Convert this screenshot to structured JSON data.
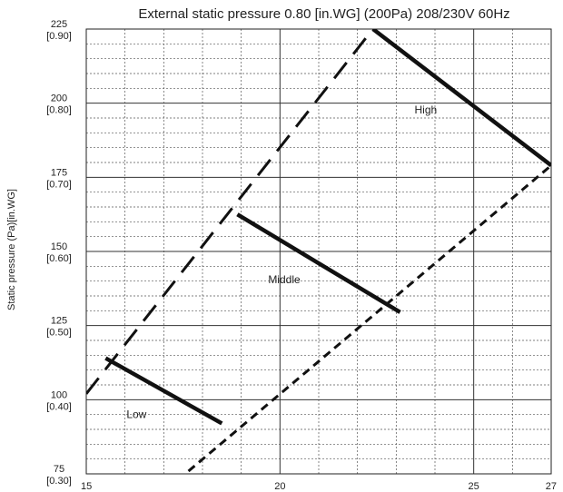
{
  "chart_data": {
    "type": "line",
    "title": "External static pressure 0.80 [in.WG] (200Pa)   208/230V 60Hz",
    "xlabel": "",
    "ylabel": "Static pressure (Pa)[in.WG]",
    "xlim": [
      15,
      27
    ],
    "ylim": [
      75,
      225
    ],
    "x_ticks": [
      {
        "value": 15,
        "label": "15"
      },
      {
        "value": 20,
        "label": "20"
      },
      {
        "value": 25,
        "label": "25"
      },
      {
        "value": 27,
        "label": "27"
      }
    ],
    "y_ticks": [
      {
        "value": 75,
        "label": "75",
        "sublabel": "[0.30]"
      },
      {
        "value": 100,
        "label": "100",
        "sublabel": "[0.40]"
      },
      {
        "value": 125,
        "label": "125",
        "sublabel": "[0.50]"
      },
      {
        "value": 150,
        "label": "150",
        "sublabel": "[0.60]"
      },
      {
        "value": 175,
        "label": "175",
        "sublabel": "[0.70]"
      },
      {
        "value": 200,
        "label": "200",
        "sublabel": "[0.80]"
      },
      {
        "value": 225,
        "label": "225",
        "sublabel": "[0.90]"
      }
    ],
    "grid": true,
    "fan_speed_lines": [
      {
        "name": "High",
        "points": [
          [
            22.4,
            225
          ],
          [
            27,
            179
          ]
        ]
      },
      {
        "name": "Middle",
        "points": [
          [
            18.9,
            162.5
          ],
          [
            23.1,
            129.5
          ]
        ]
      },
      {
        "name": "Low",
        "points": [
          [
            15.5,
            114
          ],
          [
            18.5,
            92
          ]
        ]
      }
    ],
    "upper_limit_line": {
      "style": "long-dash",
      "points": [
        [
          15,
          102
        ],
        [
          22.4,
          225
        ]
      ]
    },
    "lower_limit_line": {
      "style": "short-dash",
      "points": [
        [
          17.1,
          70
        ],
        [
          27,
          179
        ]
      ]
    }
  }
}
